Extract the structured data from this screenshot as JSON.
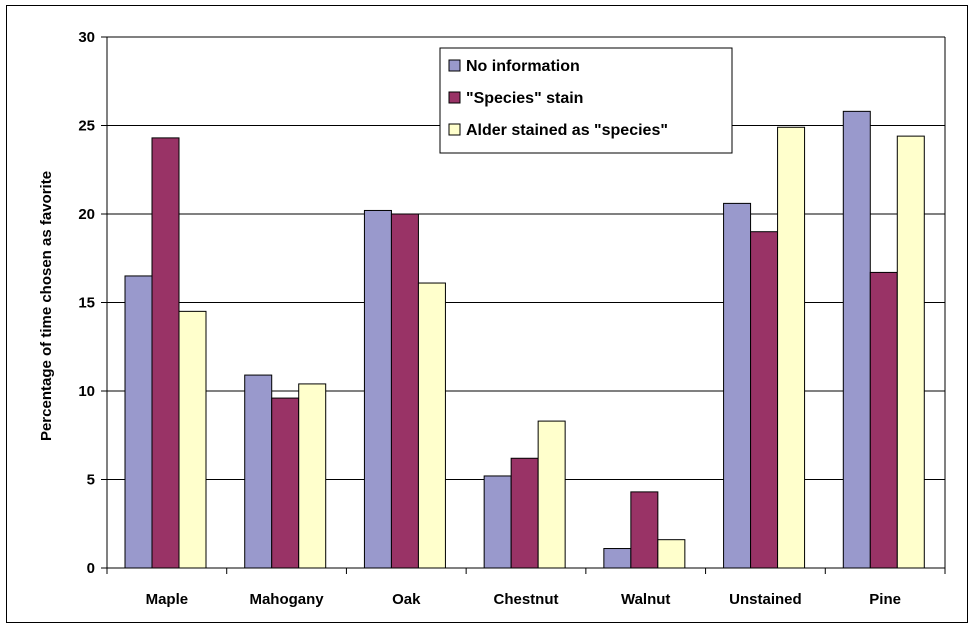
{
  "chart_data": {
    "type": "bar",
    "title": "",
    "xlabel": "",
    "ylabel": "Percentage of time chosen as favorite",
    "ylim": [
      0,
      30
    ],
    "yticks": [
      0,
      5,
      10,
      15,
      20,
      25,
      30
    ],
    "grid": true,
    "legend_position": "top-center",
    "categories": [
      "Maple",
      "Mahogany",
      "Oak",
      "Chestnut",
      "Walnut",
      "Unstained",
      "Pine"
    ],
    "series": [
      {
        "name": "No information",
        "color": "#9999cc",
        "values": [
          16.5,
          10.9,
          20.2,
          5.2,
          1.1,
          20.6,
          25.8
        ]
      },
      {
        "name": "\"Species\" stain",
        "color": "#993366",
        "values": [
          24.3,
          9.6,
          20.0,
          6.2,
          4.3,
          19.0,
          16.7
        ]
      },
      {
        "name": "Alder stained as \"species\"",
        "color": "#ffffcc",
        "values": [
          14.5,
          10.4,
          16.1,
          8.3,
          1.6,
          24.9,
          24.4
        ]
      }
    ]
  }
}
